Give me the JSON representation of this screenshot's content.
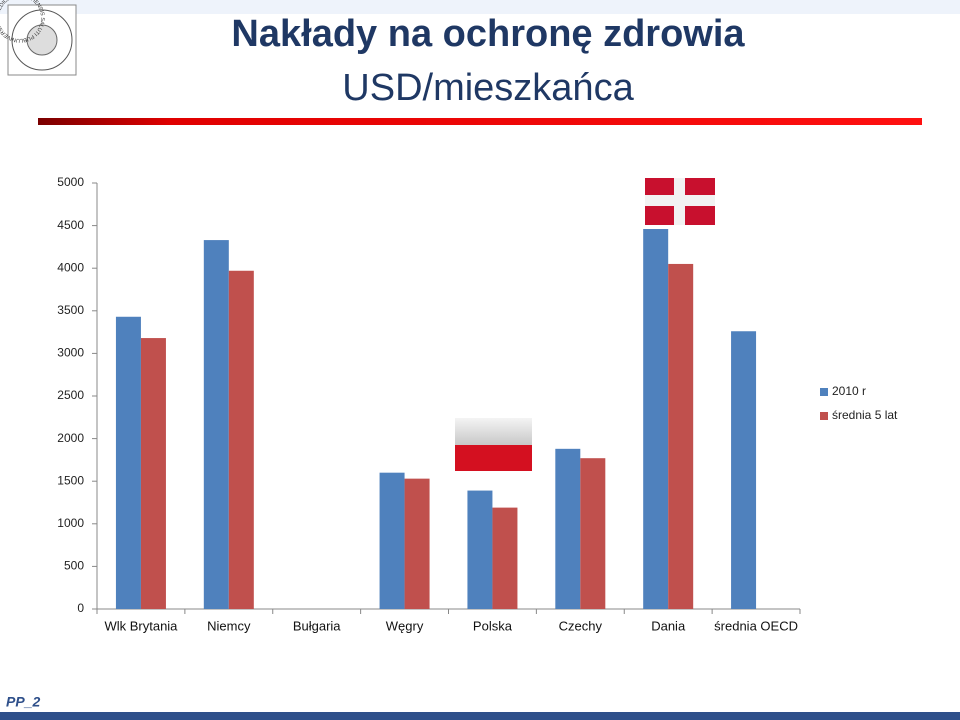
{
  "logo_text": "UNIVERSITAS MEDICA VARSOVIENSIS SALUTI PUBLICAE",
  "footer": "PP_2",
  "chart_data": {
    "type": "bar",
    "title": "Nakłady na ochronę zdrowia",
    "subtitle": "USD/mieszkańca",
    "categories": [
      "Wlk Brytania",
      "Niemcy",
      "Bułgaria",
      "Węgry",
      "Polska",
      "Czechy",
      "Dania",
      "średnia OECD"
    ],
    "series": [
      {
        "name": "2010 r",
        "color": "#4f81bd",
        "values": [
          3430,
          4330,
          null,
          1600,
          1390,
          1880,
          4460,
          3260
        ]
      },
      {
        "name": "średnia 5 lat",
        "color": "#c0504d",
        "values": [
          3180,
          3970,
          null,
          1530,
          1190,
          1770,
          4050,
          null
        ]
      }
    ],
    "ylim": [
      0,
      5000
    ],
    "yticks": [
      0,
      500,
      1000,
      1500,
      2000,
      2500,
      3000,
      3500,
      4000,
      4500,
      5000
    ],
    "grid": false,
    "legend": "right"
  }
}
